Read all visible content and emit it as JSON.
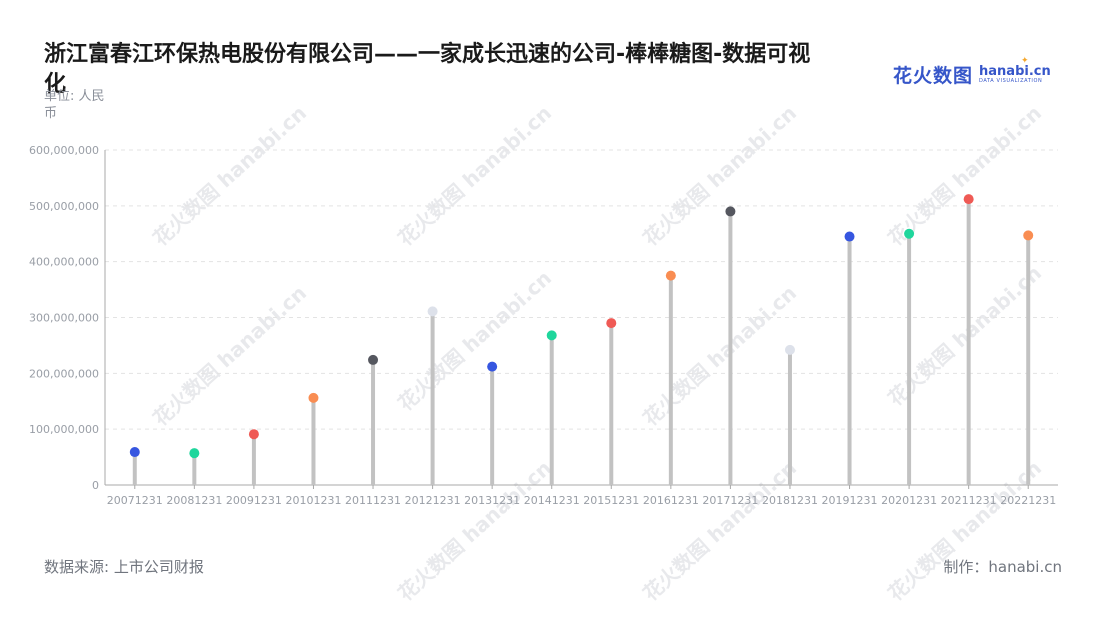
{
  "title": "浙江富春江环保热电股份有限公司——一家成长迅速的公司-棒棒糖图-数据可视化",
  "unit": "单位: 人民币",
  "source": "数据来源: 上市公司财报",
  "credit": "制作：hanabi.cn",
  "logo": {
    "cn": "花火数图",
    "en": "hanabi.cn",
    "sub": "DATA VISUALIZATION",
    "icon": "sparkle-icon"
  },
  "watermark": "花火数图 hanabi.cn",
  "colors": {
    "stick": "#c2c2c2",
    "grid": "#e3e3e3",
    "axis": "#a8a8a8",
    "tick": "#999ea6",
    "palette": [
      "#3656e0",
      "#1fd69c",
      "#ef5a55",
      "#f98d52",
      "#55575f",
      "#dde1ea"
    ]
  },
  "chart_data": {
    "type": "lollipop",
    "categories": [
      "20071231",
      "20081231",
      "20091231",
      "20101231",
      "20111231",
      "20121231",
      "20131231",
      "20141231",
      "20151231",
      "20161231",
      "20171231",
      "20181231",
      "20191231",
      "20201231",
      "20211231",
      "20221231"
    ],
    "values": [
      59000000,
      57000000,
      91000000,
      156000000,
      224000000,
      311000000,
      212000000,
      268000000,
      290000000,
      375000000,
      490000000,
      242000000,
      445000000,
      450000000,
      512000000,
      447000000
    ],
    "ylim": [
      0,
      600000000
    ],
    "yticks": [
      0,
      100000000,
      200000000,
      300000000,
      400000000,
      500000000,
      600000000
    ],
    "ytick_labels": [
      "0",
      "100,000,000",
      "200,000,000",
      "300,000,000",
      "400,000,000",
      "500,000,000",
      "600,000,000"
    ],
    "grid": true,
    "legend": "none"
  }
}
